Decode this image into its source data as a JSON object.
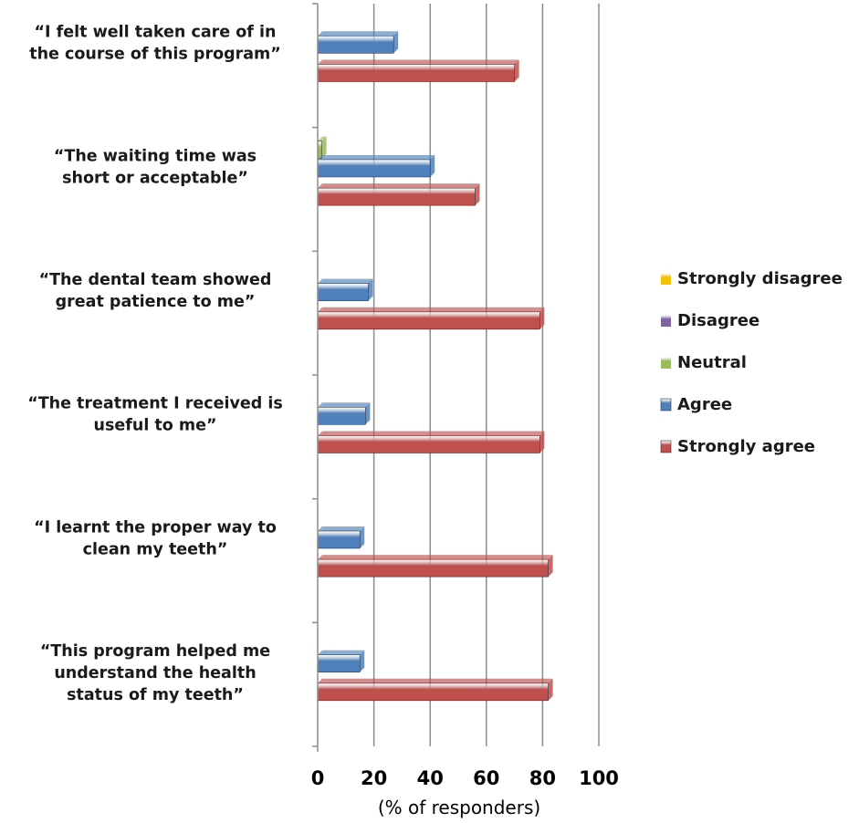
{
  "chart_data": {
    "type": "bar",
    "orientation": "horizontal",
    "categories": [
      [
        "“I felt well taken care of in",
        "the course of this program”"
      ],
      [
        "“The waiting time was",
        "short or acceptable”"
      ],
      [
        "“The dental team showed",
        "great patience to me”"
      ],
      [
        "“The treatment I received is",
        "useful to me”"
      ],
      [
        "“I learnt the proper way to",
        "clean my teeth”"
      ],
      [
        "“This program helped me",
        "understand the health",
        "status of my teeth”"
      ]
    ],
    "series": [
      {
        "name": "Strongly disagree",
        "color": "#f2c500",
        "values": [
          0,
          0,
          0,
          0,
          0,
          0
        ]
      },
      {
        "name": "Disagree",
        "color": "#8064a2",
        "values": [
          0,
          0,
          0,
          0,
          0,
          0
        ]
      },
      {
        "name": "Neutral",
        "color": "#9bbb59",
        "values": [
          0,
          1.5,
          0,
          0,
          0,
          0
        ]
      },
      {
        "name": "Agree",
        "color": "#4f81bd",
        "values": [
          27,
          40,
          18,
          17,
          15,
          15
        ]
      },
      {
        "name": "Strongly agree",
        "color": "#c0504d",
        "values": [
          70,
          56,
          79,
          79,
          82,
          82
        ]
      }
    ],
    "xlim": [
      0,
      100
    ],
    "xticks": [
      "0",
      "20",
      "40",
      "60",
      "80",
      "100"
    ],
    "xlabel": "(% of responders)",
    "grid": true,
    "legend_position": "right"
  }
}
